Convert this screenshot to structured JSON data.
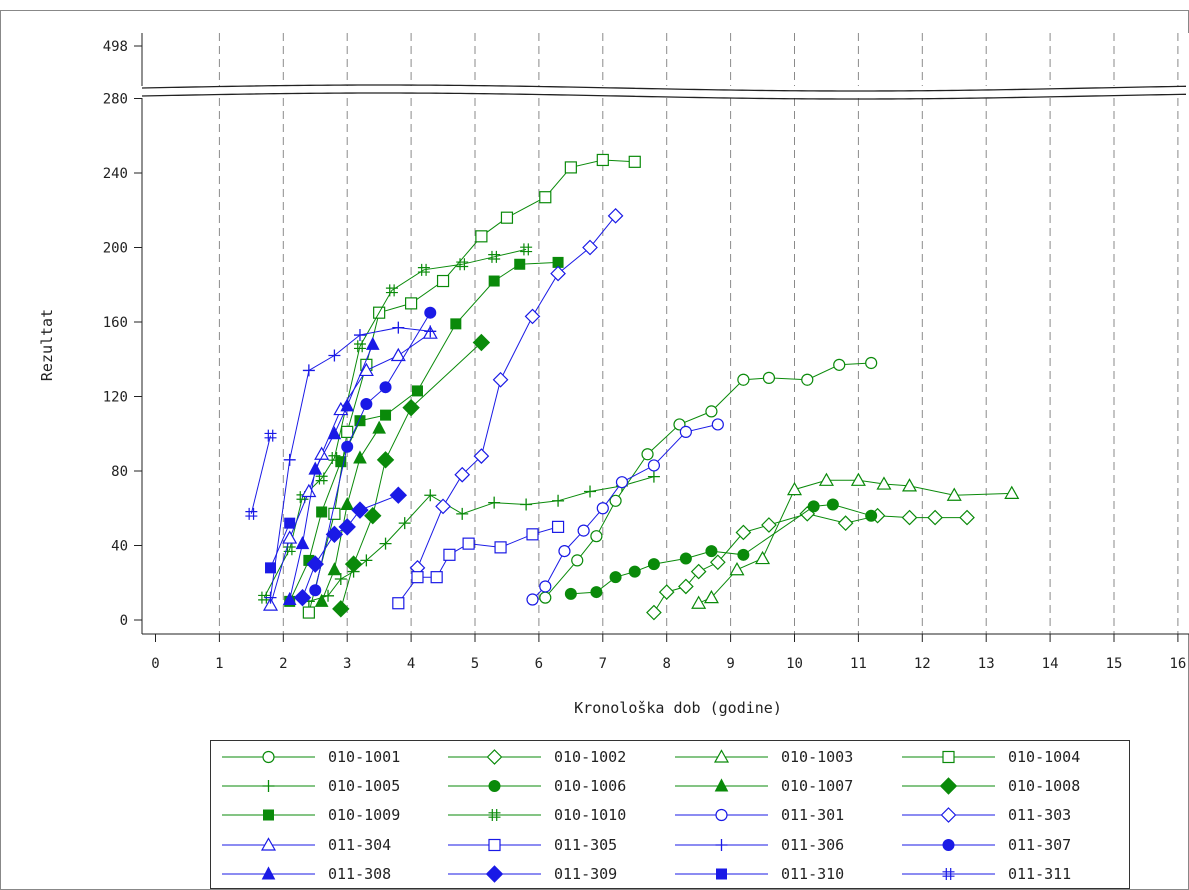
{
  "chart_data": {
    "type": "line",
    "title": "",
    "xlabel": "Kronološka dob (godine)",
    "ylabel": "Rezultat",
    "xlim": [
      -0.2,
      16.1
    ],
    "x_ticks": [
      "0",
      "1",
      "2",
      "3",
      "4",
      "5",
      "6",
      "7",
      "8",
      "9",
      "10",
      "11",
      "12",
      "13",
      "14",
      "15",
      "16"
    ],
    "y_ticks": [
      "0",
      "40",
      "80",
      "120",
      "160",
      "200",
      "240",
      "280"
    ],
    "y_top_tick": "498",
    "y_axis_break": "between 280 and 498",
    "grid": "vertical dashed at each integer age",
    "legend_placement": "bottom",
    "colors": {
      "green": "#0a8a0a",
      "blue": "#1a1ae6"
    },
    "series": [
      {
        "name": "010-1001",
        "color": "green",
        "marker": "circle-open",
        "x": [
          6.1,
          6.6,
          6.9,
          7.2,
          7.7,
          8.2,
          8.7,
          9.2,
          9.6,
          10.2,
          10.7,
          11.2
        ],
        "y": [
          12,
          32,
          45,
          64,
          89,
          105,
          112,
          129,
          130,
          129,
          137,
          138
        ]
      },
      {
        "name": "010-1002",
        "color": "green",
        "marker": "diamond-open",
        "x": [
          7.8,
          8.0,
          8.3,
          8.5,
          8.8,
          9.2,
          9.6,
          10.2,
          10.8,
          11.3,
          11.8,
          12.2,
          12.7
        ],
        "y": [
          4,
          15,
          18,
          26,
          31,
          47,
          51,
          57,
          52,
          56,
          55,
          55,
          55
        ]
      },
      {
        "name": "010-1003",
        "color": "green",
        "marker": "triangle-open",
        "x": [
          8.5,
          8.7,
          9.1,
          9.5,
          10.0,
          10.5,
          11.0,
          11.4,
          11.8,
          12.5,
          13.4
        ],
        "y": [
          9,
          12,
          27,
          33,
          70,
          75,
          75,
          73,
          72,
          67,
          68
        ]
      },
      {
        "name": "010-1004",
        "color": "green",
        "marker": "square-open",
        "x": [
          2.4,
          2.8,
          3.0,
          3.3,
          3.5,
          4.0,
          4.5,
          5.1,
          5.5,
          6.1,
          6.5,
          7.0,
          7.5
        ],
        "y": [
          4,
          57,
          101,
          137,
          165,
          170,
          182,
          206,
          216,
          227,
          243,
          247,
          246
        ]
      },
      {
        "name": "010-1005",
        "color": "green",
        "marker": "plus",
        "x": [
          2.4,
          2.7,
          2.9,
          3.1,
          3.3,
          3.6,
          3.9,
          4.3,
          4.8,
          5.3,
          5.8,
          6.3,
          6.8,
          7.3,
          7.8
        ],
        "y": [
          10,
          13,
          22,
          26,
          32,
          41,
          52,
          67,
          57,
          63,
          62,
          64,
          69,
          72,
          77
        ]
      },
      {
        "name": "010-1006",
        "color": "green",
        "marker": "circle-filled",
        "x": [
          6.5,
          6.9,
          7.2,
          7.5,
          7.8,
          8.3,
          8.7,
          9.2,
          10.3,
          10.6,
          11.2
        ],
        "y": [
          14,
          15,
          23,
          26,
          30,
          33,
          37,
          35,
          61,
          62,
          56
        ]
      },
      {
        "name": "010-1007",
        "color": "green",
        "marker": "triangle-filled",
        "x": [
          2.6,
          2.8,
          3.0,
          3.2,
          3.5
        ],
        "y": [
          10,
          27,
          62,
          87,
          103
        ]
      },
      {
        "name": "010-1008",
        "color": "green",
        "marker": "diamond-filled",
        "x": [
          2.9,
          3.1,
          3.4,
          3.6,
          4.0,
          5.1
        ],
        "y": [
          6,
          30,
          56,
          86,
          114,
          149
        ]
      },
      {
        "name": "010-1009",
        "color": "green",
        "marker": "square-filled",
        "x": [
          2.1,
          2.4,
          2.6,
          2.9,
          3.2,
          3.6,
          4.1,
          4.7,
          5.3,
          5.7,
          6.3
        ],
        "y": [
          10,
          32,
          58,
          85,
          107,
          110,
          123,
          159,
          182,
          191,
          192
        ]
      },
      {
        "name": "010-1010",
        "color": "green",
        "marker": "hash",
        "x": [
          1.7,
          2.1,
          2.3,
          2.6,
          2.8,
          3.2,
          3.7,
          4.2,
          4.8,
          5.3,
          5.8
        ],
        "y": [
          12,
          38,
          66,
          76,
          87,
          147,
          177,
          188,
          191,
          195,
          199
        ]
      },
      {
        "name": "011-301",
        "color": "blue",
        "marker": "circle-open",
        "x": [
          5.9,
          6.1,
          6.4,
          6.7,
          7.0,
          7.3,
          7.8,
          8.3,
          8.8
        ],
        "y": [
          11,
          18,
          37,
          48,
          60,
          74,
          83,
          101,
          105
        ]
      },
      {
        "name": "011-303",
        "color": "blue",
        "marker": "diamond-open",
        "x": [
          4.1,
          4.5,
          4.8,
          5.1,
          5.4,
          5.9,
          6.3,
          6.8,
          7.2
        ],
        "y": [
          28,
          61,
          78,
          88,
          129,
          163,
          186,
          200,
          217
        ]
      },
      {
        "name": "011-304",
        "color": "blue",
        "marker": "triangle-open",
        "x": [
          1.8,
          2.1,
          2.4,
          2.6,
          2.9,
          3.3,
          3.8,
          4.3
        ],
        "y": [
          8,
          44,
          69,
          89,
          113,
          134,
          142,
          154
        ]
      },
      {
        "name": "011-305",
        "color": "blue",
        "marker": "square-open",
        "x": [
          3.8,
          4.1,
          4.4,
          4.6,
          4.9,
          5.4,
          5.9,
          6.3
        ],
        "y": [
          9,
          23,
          23,
          35,
          41,
          39,
          46,
          50
        ]
      },
      {
        "name": "011-306",
        "color": "blue",
        "marker": "plus",
        "x": [
          1.8,
          2.1,
          2.4,
          2.8,
          3.2,
          3.8,
          4.3
        ],
        "y": [
          12,
          86,
          134,
          142,
          153,
          157,
          155
        ]
      },
      {
        "name": "011-307",
        "color": "blue",
        "marker": "circle-filled",
        "x": [
          2.5,
          3.0,
          3.3,
          3.6,
          4.3
        ],
        "y": [
          16,
          93,
          116,
          125,
          165
        ]
      },
      {
        "name": "011-308",
        "color": "blue",
        "marker": "triangle-filled",
        "x": [
          2.1,
          2.3,
          2.5,
          2.8,
          3.0,
          3.4
        ],
        "y": [
          11,
          41,
          81,
          100,
          115,
          148
        ]
      },
      {
        "name": "011-309",
        "color": "blue",
        "marker": "diamond-filled",
        "x": [
          2.3,
          2.5,
          2.8,
          3.0,
          3.2,
          3.8
        ],
        "y": [
          12,
          30,
          46,
          50,
          59,
          67
        ]
      },
      {
        "name": "011-310",
        "color": "blue",
        "marker": "square-filled",
        "x": [
          1.8,
          2.1
        ],
        "y": [
          28,
          52
        ]
      },
      {
        "name": "011-311",
        "color": "blue",
        "marker": "hash",
        "x": [
          1.5,
          1.8
        ],
        "y": [
          57,
          99
        ]
      }
    ]
  }
}
